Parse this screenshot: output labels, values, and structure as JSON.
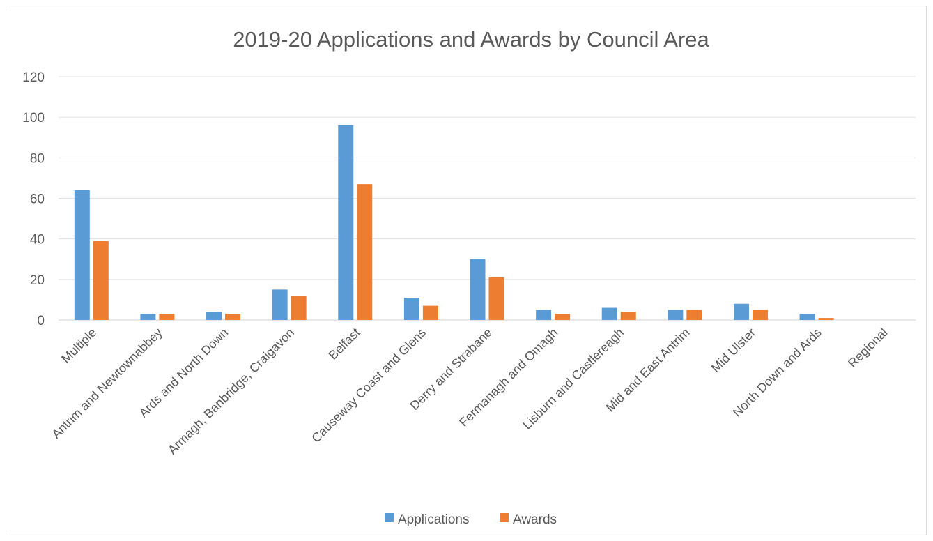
{
  "chart_data": {
    "type": "bar",
    "title": "2019-20 Applications and Awards by Council Area",
    "xlabel": "",
    "ylabel": "",
    "ylim": [
      0,
      120
    ],
    "yticks": [
      0,
      20,
      40,
      60,
      80,
      100,
      120
    ],
    "grid": true,
    "legend_position": "bottom",
    "categories": [
      "Multiple",
      "Antrim and Newtownabbey",
      "Ards and North Down",
      "Armagh, Banbridge, Craigavon",
      "Belfast",
      "Causeway Coast and Glens",
      "Derry and Strabane",
      "Fermanagh and Omagh",
      "Lisburn and Castlereagh",
      "Mid and East Antrim",
      "Mid Ulster",
      "North Down and Ards",
      "Regional"
    ],
    "series": [
      {
        "name": "Applications",
        "color": "#5b9bd5",
        "values": [
          64,
          3,
          4,
          15,
          96,
          11,
          30,
          5,
          6,
          5,
          8,
          3,
          0
        ]
      },
      {
        "name": "Awards",
        "color": "#ed7d31",
        "values": [
          39,
          3,
          3,
          12,
          67,
          7,
          21,
          3,
          4,
          5,
          5,
          1,
          0
        ]
      }
    ]
  }
}
